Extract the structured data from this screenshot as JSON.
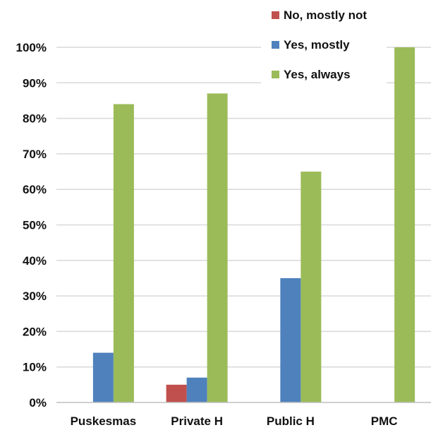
{
  "chart_data": {
    "type": "bar",
    "categories": [
      "Puskesmas",
      "Private H",
      "Public H",
      "PMC"
    ],
    "series": [
      {
        "name": "No, mostly not",
        "color": "#c0504d",
        "values": [
          0,
          5,
          0,
          0
        ]
      },
      {
        "name": "Yes, mostly",
        "color": "#4f81bd",
        "values": [
          14,
          7,
          35,
          0
        ]
      },
      {
        "name": "Yes, always",
        "color": "#9bbb59",
        "values": [
          84,
          87,
          65,
          100
        ]
      }
    ],
    "yticks": [
      "0%",
      "10%",
      "20%",
      "30%",
      "40%",
      "50%",
      "60%",
      "70%",
      "80%",
      "90%",
      "100%"
    ],
    "ylim": [
      0,
      100
    ],
    "grid": true,
    "legend_position": "top-right"
  }
}
